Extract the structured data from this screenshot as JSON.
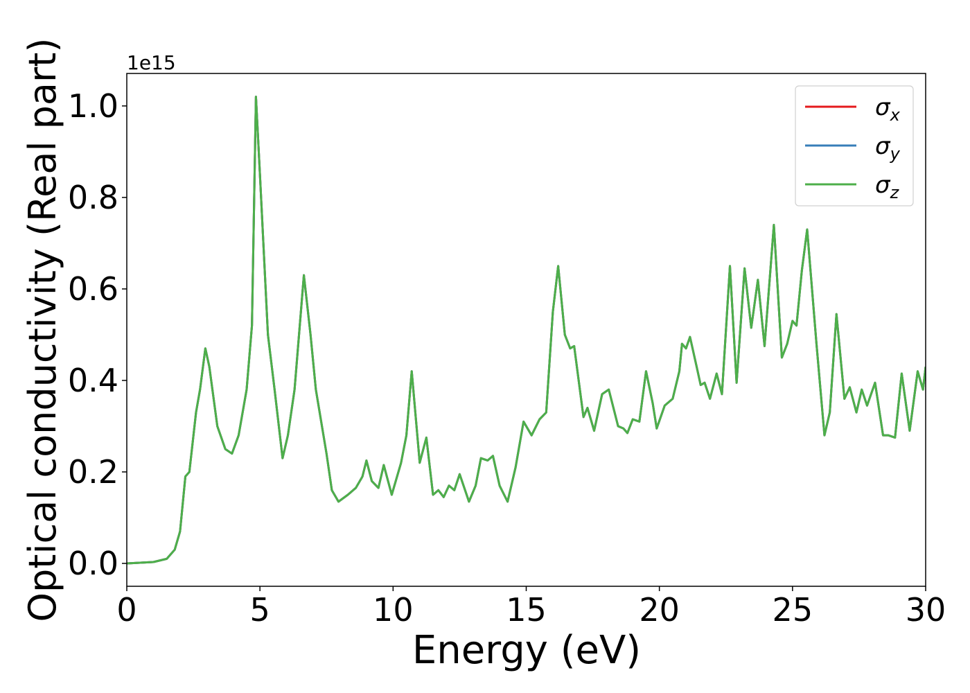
{
  "chart_data": {
    "type": "line",
    "xlabel": "Energy (eV)",
    "ylabel": "Optical conductivity (Real part)",
    "y_offset_label": "1e15",
    "x": [
      0,
      1.0,
      1.5,
      1.8,
      2.0,
      2.2,
      2.35,
      2.6,
      2.75,
      2.95,
      3.1,
      3.4,
      3.7,
      3.95,
      4.2,
      4.5,
      4.7,
      4.85,
      5.0,
      5.3,
      5.55,
      5.85,
      6.05,
      6.3,
      6.65,
      6.9,
      7.1,
      7.5,
      7.7,
      7.95,
      8.3,
      8.6,
      8.85,
      9.0,
      9.2,
      9.45,
      9.65,
      9.95,
      10.3,
      10.5,
      10.7,
      11.0,
      11.25,
      11.5,
      11.7,
      11.9,
      12.1,
      12.3,
      12.5,
      12.85,
      13.1,
      13.3,
      13.55,
      13.75,
      14.0,
      14.3,
      14.6,
      14.9,
      15.2,
      15.5,
      15.75,
      16.0,
      16.2,
      16.45,
      16.65,
      16.8,
      17.15,
      17.3,
      17.55,
      17.85,
      18.1,
      18.45,
      18.65,
      18.8,
      19.0,
      19.25,
      19.5,
      19.75,
      19.9,
      20.2,
      20.5,
      20.75,
      20.85,
      21.0,
      21.15,
      21.4,
      21.55,
      21.7,
      21.9,
      22.15,
      22.35,
      22.65,
      22.9,
      23.2,
      23.45,
      23.7,
      23.95,
      24.3,
      24.6,
      24.8,
      25.0,
      25.15,
      25.35,
      25.55,
      25.9,
      26.2,
      26.4,
      26.65,
      26.95,
      27.15,
      27.4,
      27.6,
      27.8,
      28.1,
      28.4,
      28.6,
      28.85,
      29.1,
      29.4,
      29.7,
      29.9,
      30.0
    ],
    "series": [
      {
        "name": "σx",
        "color": "#e41a1c",
        "values": [
          0,
          0.003,
          0.01,
          0.03,
          0.07,
          0.19,
          0.2,
          0.33,
          0.38,
          0.47,
          0.43,
          0.3,
          0.25,
          0.24,
          0.28,
          0.38,
          0.52,
          1.02,
          0.85,
          0.5,
          0.38,
          0.23,
          0.28,
          0.38,
          0.63,
          0.5,
          0.38,
          0.24,
          0.16,
          0.135,
          0.15,
          0.165,
          0.19,
          0.225,
          0.18,
          0.165,
          0.215,
          0.15,
          0.22,
          0.28,
          0.42,
          0.22,
          0.275,
          0.15,
          0.16,
          0.145,
          0.17,
          0.16,
          0.195,
          0.135,
          0.17,
          0.23,
          0.225,
          0.235,
          0.17,
          0.135,
          0.21,
          0.31,
          0.28,
          0.315,
          0.33,
          0.55,
          0.65,
          0.5,
          0.47,
          0.475,
          0.32,
          0.34,
          0.29,
          0.37,
          0.38,
          0.3,
          0.295,
          0.285,
          0.315,
          0.31,
          0.42,
          0.35,
          0.295,
          0.345,
          0.36,
          0.42,
          0.48,
          0.47,
          0.495,
          0.43,
          0.39,
          0.395,
          0.36,
          0.415,
          0.37,
          0.65,
          0.395,
          0.645,
          0.515,
          0.62,
          0.475,
          0.74,
          0.45,
          0.48,
          0.53,
          0.52,
          0.64,
          0.73,
          0.48,
          0.28,
          0.33,
          0.545,
          0.36,
          0.385,
          0.33,
          0.38,
          0.345,
          0.395,
          0.28,
          0.28,
          0.275,
          0.415,
          0.29,
          0.42,
          0.38,
          0.43
        ]
      },
      {
        "name": "σy",
        "color": "#377eb8",
        "values": [
          0,
          0.003,
          0.01,
          0.03,
          0.07,
          0.19,
          0.2,
          0.33,
          0.38,
          0.47,
          0.43,
          0.3,
          0.25,
          0.24,
          0.28,
          0.38,
          0.52,
          1.02,
          0.85,
          0.5,
          0.38,
          0.23,
          0.28,
          0.38,
          0.63,
          0.5,
          0.38,
          0.24,
          0.16,
          0.135,
          0.15,
          0.165,
          0.19,
          0.225,
          0.18,
          0.165,
          0.215,
          0.15,
          0.22,
          0.28,
          0.42,
          0.22,
          0.275,
          0.15,
          0.16,
          0.145,
          0.17,
          0.16,
          0.195,
          0.135,
          0.17,
          0.23,
          0.225,
          0.235,
          0.17,
          0.135,
          0.21,
          0.31,
          0.28,
          0.315,
          0.33,
          0.55,
          0.65,
          0.5,
          0.47,
          0.475,
          0.32,
          0.34,
          0.29,
          0.37,
          0.38,
          0.3,
          0.295,
          0.285,
          0.315,
          0.31,
          0.42,
          0.35,
          0.295,
          0.345,
          0.36,
          0.42,
          0.48,
          0.47,
          0.495,
          0.43,
          0.39,
          0.395,
          0.36,
          0.415,
          0.37,
          0.65,
          0.395,
          0.645,
          0.515,
          0.62,
          0.475,
          0.74,
          0.45,
          0.48,
          0.53,
          0.52,
          0.64,
          0.73,
          0.48,
          0.28,
          0.33,
          0.545,
          0.36,
          0.385,
          0.33,
          0.38,
          0.345,
          0.395,
          0.28,
          0.28,
          0.275,
          0.415,
          0.29,
          0.42,
          0.38,
          0.43
        ]
      },
      {
        "name": "σz",
        "color": "#4daf4a",
        "values": [
          0,
          0.003,
          0.01,
          0.03,
          0.07,
          0.19,
          0.2,
          0.33,
          0.38,
          0.47,
          0.43,
          0.3,
          0.25,
          0.24,
          0.28,
          0.38,
          0.52,
          1.02,
          0.85,
          0.5,
          0.38,
          0.23,
          0.28,
          0.38,
          0.63,
          0.5,
          0.38,
          0.24,
          0.16,
          0.135,
          0.15,
          0.165,
          0.19,
          0.225,
          0.18,
          0.165,
          0.215,
          0.15,
          0.22,
          0.28,
          0.42,
          0.22,
          0.275,
          0.15,
          0.16,
          0.145,
          0.17,
          0.16,
          0.195,
          0.135,
          0.17,
          0.23,
          0.225,
          0.235,
          0.17,
          0.135,
          0.21,
          0.31,
          0.28,
          0.315,
          0.33,
          0.55,
          0.65,
          0.5,
          0.47,
          0.475,
          0.32,
          0.34,
          0.29,
          0.37,
          0.38,
          0.3,
          0.295,
          0.285,
          0.315,
          0.31,
          0.42,
          0.35,
          0.295,
          0.345,
          0.36,
          0.42,
          0.48,
          0.47,
          0.495,
          0.43,
          0.39,
          0.395,
          0.36,
          0.415,
          0.37,
          0.65,
          0.395,
          0.645,
          0.515,
          0.62,
          0.475,
          0.74,
          0.45,
          0.48,
          0.53,
          0.52,
          0.64,
          0.73,
          0.48,
          0.28,
          0.33,
          0.545,
          0.36,
          0.385,
          0.33,
          0.38,
          0.345,
          0.395,
          0.28,
          0.28,
          0.275,
          0.415,
          0.29,
          0.42,
          0.38,
          0.43
        ]
      }
    ],
    "xlim": [
      0,
      30
    ],
    "xticks": [
      0,
      5,
      10,
      15,
      20,
      25,
      30
    ],
    "ylim": [
      -0.05,
      1.071
    ],
    "yticks": [
      {
        "value": 0,
        "label": "0.0"
      },
      {
        "value": 0.2,
        "label": "0.2"
      },
      {
        "value": 0.4,
        "label": "0.4"
      },
      {
        "value": 0.6,
        "label": "0.6"
      },
      {
        "value": 0.8,
        "label": "0.8"
      },
      {
        "value": 1.0,
        "label": "1.0"
      }
    ],
    "legend": "upper right",
    "grid": false
  }
}
